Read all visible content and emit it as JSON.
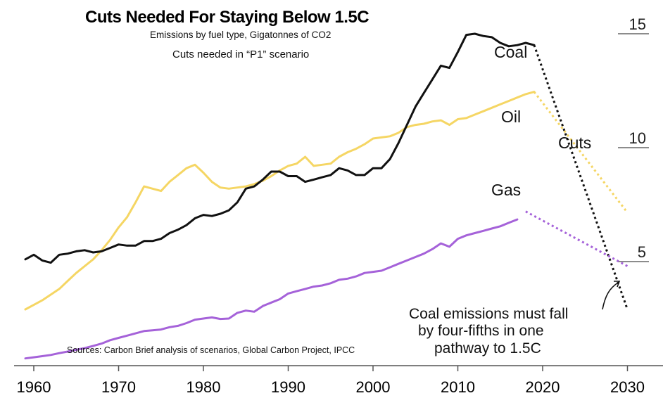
{
  "chart_data": {
    "type": "line",
    "title": "Cuts Needed For Staying Below 1.5C",
    "subtitle": "Emissions by fuel type, Gigatonnes of CO2",
    "scenario_note": "Cuts needed in “P1” scenario",
    "source": "Sources: Carbon Brief analysis of scenarios, Global Carbon Project, IPCC",
    "annotation": [
      "Coal emissions must fall",
      "by four-fifths in one",
      "pathway to 1.5C"
    ],
    "cuts_label": "Cuts",
    "xlim": [
      1959,
      2030
    ],
    "ylim": [
      0,
      15
    ],
    "x_ticks": [
      1960,
      1970,
      1980,
      1990,
      2000,
      2010,
      2020,
      2030
    ],
    "x_tick_labels": [
      "1960",
      "1970",
      "1980",
      "1990",
      "2000",
      "2010",
      "2020",
      "2030"
    ],
    "y_ticks": [
      5,
      10,
      15
    ],
    "y_tick_labels": [
      "5",
      "10",
      "15"
    ],
    "grid": false,
    "series": [
      {
        "name": "Coal",
        "color": "#111111",
        "x": [
          1959,
          1960,
          1961,
          1962,
          1963,
          1964,
          1965,
          1966,
          1967,
          1968,
          1969,
          1970,
          1971,
          1972,
          1973,
          1974,
          1975,
          1976,
          1977,
          1978,
          1979,
          1980,
          1981,
          1982,
          1983,
          1984,
          1985,
          1986,
          1987,
          1988,
          1989,
          1990,
          1991,
          1992,
          1993,
          1994,
          1995,
          1996,
          1997,
          1998,
          1999,
          2000,
          2001,
          2002,
          2003,
          2004,
          2005,
          2006,
          2007,
          2008,
          2009,
          2010,
          2011,
          2012,
          2013,
          2014,
          2015,
          2016,
          2017,
          2018,
          2019
        ],
        "values": [
          5.1,
          5.3,
          5.05,
          4.95,
          5.3,
          5.35,
          5.45,
          5.5,
          5.4,
          5.45,
          5.6,
          5.75,
          5.7,
          5.7,
          5.9,
          5.9,
          6.0,
          6.25,
          6.4,
          6.6,
          6.9,
          7.05,
          7.0,
          7.1,
          7.25,
          7.6,
          8.2,
          8.3,
          8.6,
          8.95,
          8.95,
          8.75,
          8.75,
          8.5,
          8.6,
          8.7,
          8.8,
          9.1,
          9.0,
          8.8,
          8.8,
          9.1,
          9.1,
          9.5,
          10.2,
          11.0,
          11.8,
          12.4,
          13.0,
          13.6,
          13.5,
          14.2,
          14.95,
          15.0,
          14.9,
          14.85,
          14.6,
          14.45,
          14.5,
          14.6,
          14.5
        ]
      },
      {
        "name": "Oil",
        "color": "#f5d664",
        "x": [
          1959,
          1960,
          1961,
          1962,
          1963,
          1964,
          1965,
          1966,
          1967,
          1968,
          1969,
          1970,
          1971,
          1972,
          1973,
          1974,
          1975,
          1976,
          1977,
          1978,
          1979,
          1980,
          1981,
          1982,
          1983,
          1984,
          1985,
          1986,
          1987,
          1988,
          1989,
          1990,
          1991,
          1992,
          1993,
          1994,
          1995,
          1996,
          1997,
          1998,
          1999,
          2000,
          2001,
          2002,
          2003,
          2004,
          2005,
          2006,
          2007,
          2008,
          2009,
          2010,
          2011,
          2012,
          2013,
          2014,
          2015,
          2016,
          2017,
          2018,
          2019
        ],
        "values": [
          2.9,
          3.1,
          3.3,
          3.55,
          3.8,
          4.15,
          4.5,
          4.8,
          5.1,
          5.5,
          5.95,
          6.5,
          6.95,
          7.6,
          8.3,
          8.2,
          8.1,
          8.5,
          8.8,
          9.1,
          9.25,
          8.9,
          8.5,
          8.25,
          8.2,
          8.25,
          8.3,
          8.4,
          8.55,
          8.75,
          9.0,
          9.2,
          9.3,
          9.6,
          9.2,
          9.25,
          9.3,
          9.6,
          9.8,
          9.95,
          10.15,
          10.4,
          10.45,
          10.5,
          10.65,
          10.9,
          11.0,
          11.05,
          11.15,
          11.2,
          11.0,
          11.25,
          11.3,
          11.45,
          11.6,
          11.75,
          11.9,
          12.05,
          12.2,
          12.35,
          12.45
        ]
      },
      {
        "name": "Gas",
        "color": "#a562d9",
        "x": [
          1959,
          1960,
          1961,
          1962,
          1963,
          1964,
          1965,
          1966,
          1967,
          1968,
          1969,
          1970,
          1971,
          1972,
          1973,
          1974,
          1975,
          1976,
          1977,
          1978,
          1979,
          1980,
          1981,
          1982,
          1983,
          1984,
          1985,
          1986,
          1987,
          1988,
          1989,
          1990,
          1991,
          1992,
          1993,
          1994,
          1995,
          1996,
          1997,
          1998,
          1999,
          2000,
          2001,
          2002,
          2003,
          2004,
          2005,
          2006,
          2007,
          2008,
          2009,
          2010,
          2011,
          2012,
          2013,
          2014,
          2015,
          2016,
          2017
        ],
        "values": [
          0.75,
          0.8,
          0.85,
          0.9,
          0.98,
          1.05,
          1.13,
          1.2,
          1.3,
          1.4,
          1.55,
          1.65,
          1.75,
          1.85,
          1.95,
          1.98,
          2.02,
          2.12,
          2.18,
          2.3,
          2.45,
          2.5,
          2.55,
          2.48,
          2.5,
          2.75,
          2.85,
          2.8,
          3.05,
          3.2,
          3.35,
          3.6,
          3.7,
          3.8,
          3.9,
          3.95,
          4.05,
          4.2,
          4.25,
          4.35,
          4.5,
          4.55,
          4.6,
          4.75,
          4.9,
          5.05,
          5.2,
          5.35,
          5.55,
          5.8,
          5.65,
          6.0,
          6.15,
          6.25,
          6.35,
          6.45,
          6.55,
          6.7,
          6.85
        ]
      }
    ],
    "projections": [
      {
        "name": "Coal",
        "color": "#111111",
        "x": [
          2019,
          2030
        ],
        "values": [
          14.5,
          2.9
        ]
      },
      {
        "name": "Oil",
        "color": "#f5d664",
        "x": [
          2019,
          2030
        ],
        "values": [
          12.45,
          7.15
        ]
      },
      {
        "name": "Gas",
        "color": "#a562d9",
        "x": [
          2018,
          2030
        ],
        "values": [
          7.2,
          4.8
        ]
      }
    ]
  }
}
